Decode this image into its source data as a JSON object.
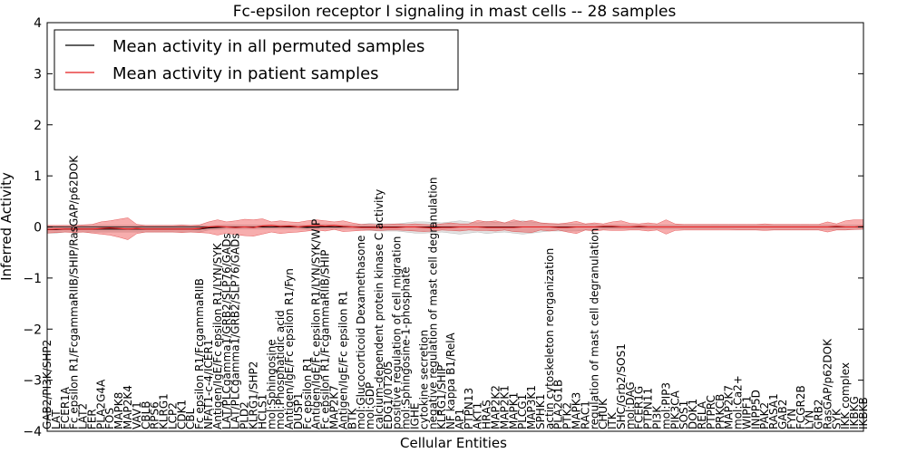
{
  "chart_data": {
    "type": "line",
    "title": "Fc-epsilon receptor I signaling in mast cells -- 28 samples",
    "xlabel": "Cellular Entities",
    "ylabel": "Inferred Activity",
    "ylim": [
      -4,
      4
    ],
    "yticks": [
      "-4",
      "-3",
      "-2",
      "-1",
      "0",
      "1",
      "2",
      "3",
      "4"
    ],
    "legend": {
      "placement": "top-left",
      "entries": [
        {
          "label": "Mean activity in all permuted samples",
          "color": "#000000"
        },
        {
          "label": "Mean activity in patient samples",
          "color": "#e41a1c"
        }
      ]
    },
    "categories": [
      "GAB2/PI3K/SHP2",
      "LAT",
      "FCER1A",
      "Fc epsilon R1/FcgammaRIIB/SHIP/RasGAP/p62DOK",
      "LAT2",
      "FER",
      "PLA2G4A",
      "FOS",
      "MAPK8",
      "MAP2K4",
      "VAV1",
      "CBLB",
      "RPS6",
      "KLRG1",
      "LCP2",
      "CDK1",
      "CBL",
      "Fc epsilon R1/FcgammaRIIB",
      "NFAT1-c-4/ICER1",
      "Antigen/IgE/Fc epsilon R1/LYN/SYK",
      "LAT/PLCgamma1/GRB2/SLP76/GADs",
      "LAT/PLCgamma1/GRB2/SLP76/GADs",
      "PLD2",
      "KLRG1/SHP2",
      "HCLS1",
      "mol:Sphingosine",
      "mol:Phosphatidic acid",
      "Antigen/IgE/Fc epsilon R1/Fyn",
      "DUSP1",
      "Fc epsilon R1",
      "Antigen/IgE/Fc epsilon R1/LYN/SYK/WIP",
      "Fc epsilon R1/FcgammaRIIB/SHIP",
      "MAP2K7",
      "Antigen/IgE/Fc epsilon R1",
      "BTK",
      "mol:Glucocorticoid Dexamethasone",
      "mol:GDP",
      "calcium-dependent protein kinase C activity",
      "EDG1/0T205",
      "positive regulation of cell migration",
      "mol:Sphingosine-1-phosphate",
      "IGHE",
      "cytokine secretion",
      "negative regulation of mast cell degranulation",
      "KLRG1/SHIP",
      "NF kappa B1/RelA",
      "AP1",
      "PTPN13",
      "AKT1",
      "HRAS",
      "MAP2K2",
      "MAP2K1",
      "MAPK1",
      "PLCG1",
      "MAP3K1",
      "SPHK1",
      "actin cytoskeleton reorganization",
      "PLA2G1B",
      "PTK2",
      "MAPK3",
      "RAC1",
      "regulation of mast cell degranulation",
      "CHUK",
      "ITK",
      "SHC/Grb2/SOS1",
      "mol:DAG",
      "FCER1G",
      "PTPN11",
      "PI3K",
      "mol:PIP3",
      "PIK3CA",
      "SOS1",
      "DOK1",
      "RELA",
      "PTPRC",
      "PRKCB",
      "MAP2K7",
      "mol:Ca2+",
      "WIPF1",
      "INPP5D",
      "PAK2",
      "RASA1",
      "GAB2",
      "FYN",
      "FCGR2B",
      "LYN",
      "GRB2",
      "RasGAP/p62DOK",
      "SYK",
      "IKK complex",
      "IKBKG",
      "IKBKB"
    ],
    "series": [
      {
        "name": "Mean activity in all permuted samples",
        "color": "#000000",
        "values": [
          -0.05,
          -0.05,
          -0.04,
          -0.04,
          -0.04,
          -0.04,
          -0.04,
          -0.04,
          -0.04,
          -0.04,
          -0.04,
          -0.04,
          -0.04,
          -0.04,
          -0.04,
          -0.04,
          -0.04,
          -0.04,
          -0.02,
          -0.01,
          0.0,
          0.0,
          0.0,
          0.0,
          0.0,
          0.0,
          0.0,
          0.0,
          0.0,
          -0.01,
          0.0,
          0.01,
          0.0,
          0.0,
          0.0,
          0.0,
          0.0,
          0.0,
          0.0,
          0.0,
          0.0,
          0.0,
          0.0,
          0.0,
          0.0,
          0.0,
          0.0,
          0.0,
          0.0,
          0.0,
          0.0,
          0.0,
          0.0,
          0.0,
          0.0,
          0.0,
          0.0,
          0.0,
          0.0,
          0.0,
          0.0,
          0.0,
          0.0,
          0.0,
          0.0,
          0.0,
          0.0,
          0.0,
          0.0,
          0.0,
          0.0,
          0.0,
          0.0,
          0.0,
          0.0,
          0.0,
          0.0,
          0.0,
          0.0,
          0.0,
          0.0,
          0.0,
          0.0,
          0.0,
          0.0,
          0.0,
          0.0,
          0.0,
          0.0,
          0.0,
          0.0,
          0.0
        ],
        "lower": [
          -0.12,
          -0.12,
          -0.1,
          -0.1,
          -0.1,
          -0.1,
          -0.1,
          -0.1,
          -0.1,
          -0.1,
          -0.1,
          -0.1,
          -0.1,
          -0.1,
          -0.1,
          -0.1,
          -0.1,
          -0.1,
          -0.06,
          -0.05,
          -0.04,
          -0.04,
          -0.04,
          -0.04,
          -0.04,
          -0.04,
          -0.04,
          -0.04,
          -0.04,
          -0.05,
          -0.04,
          -0.04,
          -0.04,
          -0.04,
          -0.04,
          -0.05,
          -0.07,
          -0.08,
          -0.08,
          -0.08,
          -0.1,
          -0.12,
          -0.12,
          -0.11,
          -0.1,
          -0.12,
          -0.14,
          -0.12,
          -0.1,
          -0.13,
          -0.11,
          -0.1,
          -0.12,
          -0.14,
          -0.12,
          -0.1,
          -0.08,
          -0.08,
          -0.08,
          -0.08,
          -0.06,
          -0.06,
          -0.04,
          -0.04,
          -0.04,
          -0.04,
          -0.04,
          -0.04,
          -0.04,
          -0.04,
          -0.04,
          -0.04,
          -0.04,
          -0.04,
          -0.04,
          -0.04,
          -0.04,
          -0.05,
          -0.05,
          -0.05,
          -0.05,
          -0.05,
          -0.05,
          -0.05,
          -0.05,
          -0.05,
          -0.05,
          -0.05,
          -0.05,
          -0.05,
          -0.05,
          -0.05
        ],
        "upper": [
          0.02,
          0.02,
          0.03,
          0.03,
          0.03,
          0.03,
          0.03,
          0.03,
          0.03,
          0.03,
          0.03,
          0.03,
          0.03,
          0.03,
          0.03,
          0.03,
          0.03,
          0.03,
          0.02,
          0.03,
          0.04,
          0.04,
          0.04,
          0.04,
          0.04,
          0.04,
          0.04,
          0.04,
          0.04,
          0.03,
          0.04,
          0.05,
          0.04,
          0.04,
          0.04,
          0.05,
          0.07,
          0.06,
          0.06,
          0.06,
          0.08,
          0.1,
          0.1,
          0.09,
          0.08,
          0.1,
          0.12,
          0.1,
          0.08,
          0.11,
          0.09,
          0.08,
          0.1,
          0.12,
          0.1,
          0.08,
          0.06,
          0.06,
          0.06,
          0.06,
          0.05,
          0.05,
          0.04,
          0.04,
          0.04,
          0.04,
          0.04,
          0.04,
          0.04,
          0.04,
          0.04,
          0.04,
          0.04,
          0.04,
          0.04,
          0.04,
          0.04,
          0.04,
          0.04,
          0.04,
          0.04,
          0.04,
          0.04,
          0.04,
          0.04,
          0.04,
          0.04,
          0.04,
          0.04,
          0.04,
          0.04,
          0.04
        ]
      },
      {
        "name": "Mean activity in patient samples",
        "color": "#e41a1c",
        "values": [
          -0.05,
          -0.04,
          -0.04,
          -0.04,
          -0.04,
          -0.04,
          -0.03,
          -0.02,
          -0.03,
          -0.04,
          -0.03,
          -0.04,
          -0.04,
          -0.04,
          -0.04,
          -0.04,
          -0.04,
          -0.03,
          0.0,
          0.01,
          0.0,
          -0.01,
          0.0,
          -0.01,
          0.02,
          0.03,
          0.01,
          0.02,
          0.0,
          0.02,
          0.03,
          0.02,
          0.03,
          0.01,
          0.0,
          -0.01,
          -0.01,
          -0.01,
          -0.01,
          -0.01,
          0.0,
          0.0,
          -0.01,
          -0.02,
          -0.01,
          -0.01,
          0.0,
          0.0,
          0.0,
          -0.01,
          -0.01,
          -0.01,
          -0.01,
          0.0,
          0.0,
          0.0,
          0.0,
          -0.01,
          -0.01,
          0.0,
          0.0,
          0.0,
          0.01,
          0.01,
          0.0,
          0.0,
          0.01,
          0.0,
          0.0,
          0.0,
          0.0,
          0.0,
          0.0,
          0.0,
          0.0,
          0.0,
          0.0,
          0.0,
          0.0,
          0.0,
          0.0,
          0.0,
          0.0,
          0.0,
          0.0,
          0.0,
          0.0,
          0.0,
          0.01,
          0.0,
          0.0,
          0.01
        ],
        "lower": [
          -0.12,
          -0.11,
          -0.1,
          -0.11,
          -0.1,
          -0.12,
          -0.14,
          -0.16,
          -0.2,
          -0.25,
          -0.13,
          -0.1,
          -0.1,
          -0.1,
          -0.1,
          -0.11,
          -0.1,
          -0.11,
          -0.12,
          -0.16,
          -0.12,
          -0.15,
          -0.17,
          -0.18,
          -0.14,
          -0.1,
          -0.13,
          -0.11,
          -0.1,
          -0.08,
          -0.06,
          -0.08,
          -0.05,
          -0.09,
          -0.08,
          -0.07,
          -0.06,
          -0.07,
          -0.06,
          -0.06,
          -0.07,
          -0.08,
          -0.09,
          -0.08,
          -0.06,
          -0.07,
          -0.08,
          -0.06,
          -0.07,
          -0.07,
          -0.08,
          -0.06,
          -0.09,
          -0.1,
          -0.11,
          -0.06,
          -0.08,
          -0.06,
          -0.1,
          -0.13,
          -0.06,
          -0.08,
          -0.06,
          -0.07,
          -0.07,
          -0.06,
          -0.06,
          -0.08,
          -0.06,
          -0.14,
          -0.07,
          -0.06,
          -0.06,
          -0.06,
          -0.06,
          -0.06,
          -0.06,
          -0.06,
          -0.06,
          -0.06,
          -0.07,
          -0.06,
          -0.06,
          -0.06,
          -0.06,
          -0.06,
          -0.06,
          -0.1,
          -0.06,
          -0.06,
          -0.05,
          -0.04
        ],
        "upper": [
          0.03,
          0.03,
          0.03,
          0.03,
          0.04,
          0.05,
          0.1,
          0.12,
          0.15,
          0.18,
          0.05,
          0.03,
          0.03,
          0.03,
          0.03,
          0.04,
          0.03,
          0.04,
          0.1,
          0.14,
          0.1,
          0.12,
          0.15,
          0.14,
          0.16,
          0.1,
          0.12,
          0.1,
          0.09,
          0.12,
          0.14,
          0.12,
          0.1,
          0.12,
          0.08,
          0.05,
          0.05,
          0.04,
          0.05,
          0.06,
          0.05,
          0.06,
          0.05,
          0.04,
          0.06,
          0.08,
          0.06,
          0.06,
          0.13,
          0.1,
          0.12,
          0.08,
          0.14,
          0.1,
          0.13,
          0.08,
          0.07,
          0.06,
          0.08,
          0.11,
          0.06,
          0.08,
          0.06,
          0.1,
          0.12,
          0.07,
          0.06,
          0.08,
          0.06,
          0.14,
          0.06,
          0.05,
          0.05,
          0.05,
          0.05,
          0.05,
          0.05,
          0.05,
          0.05,
          0.05,
          0.06,
          0.05,
          0.05,
          0.05,
          0.05,
          0.05,
          0.05,
          0.1,
          0.06,
          0.12,
          0.14,
          0.14
        ]
      }
    ]
  }
}
